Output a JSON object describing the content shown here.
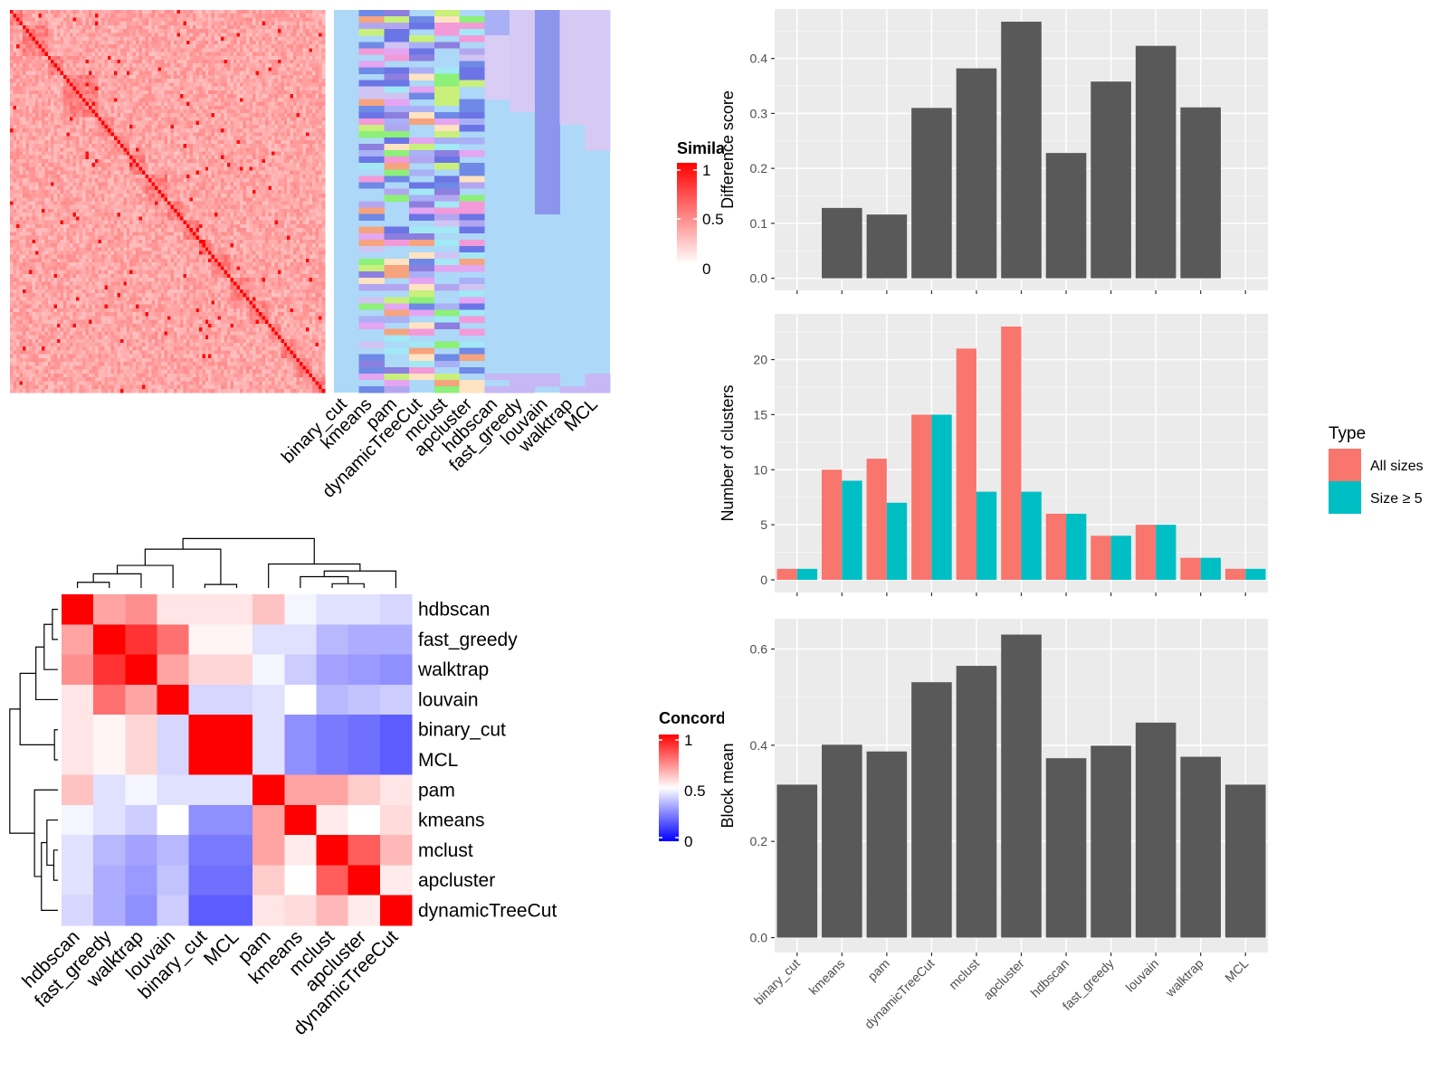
{
  "methods": [
    "binary_cut",
    "kmeans",
    "pam",
    "dynamicTreeCut",
    "mclust",
    "apcluster",
    "hdbscan",
    "fast_greedy",
    "louvain",
    "walktrap",
    "MCL"
  ],
  "similarity_legend": {
    "title": "Similarity",
    "ticks": [
      "1",
      "0.5",
      "0"
    ]
  },
  "concordance_legend": {
    "title": "Concordance",
    "ticks": [
      "1",
      "0.5",
      "0"
    ]
  },
  "colors": {
    "panel_bg": "#EBEBEB",
    "grid": "#FFFFFF",
    "bar": "#595959",
    "all_sizes": "#F8766D",
    "size_ge5": "#00BFC4",
    "sim_high": "#FF0000",
    "conc_low": "#0000FF"
  },
  "chart_data": [
    {
      "type": "heatmap",
      "name": "similarity-heatmap",
      "legend_title": "Similarity",
      "range": [
        0,
        1
      ]
    },
    {
      "type": "heatmap",
      "name": "cluster-assignment-heatmap",
      "columns": [
        "binary_cut",
        "kmeans",
        "pam",
        "dynamicTreeCut",
        "mclust",
        "apcluster",
        "hdbscan",
        "fast_greedy",
        "louvain",
        "walktrap",
        "MCL"
      ]
    },
    {
      "type": "heatmap",
      "name": "concordance-heatmap",
      "legend_title": "Concordance",
      "range": [
        0,
        1
      ],
      "order": [
        "hdbscan",
        "fast_greedy",
        "walktrap",
        "louvain",
        "binary_cut",
        "MCL",
        "pam",
        "kmeans",
        "mclust",
        "apcluster",
        "dynamicTreeCut"
      ],
      "matrix": [
        [
          1.0,
          0.68,
          0.72,
          0.55,
          0.55,
          0.55,
          0.62,
          0.48,
          0.44,
          0.44,
          0.42
        ],
        [
          0.68,
          1.0,
          0.9,
          0.78,
          0.52,
          0.52,
          0.44,
          0.44,
          0.36,
          0.34,
          0.34
        ],
        [
          0.72,
          0.9,
          1.0,
          0.68,
          0.58,
          0.58,
          0.48,
          0.4,
          0.32,
          0.3,
          0.28
        ],
        [
          0.55,
          0.78,
          0.68,
          1.0,
          0.42,
          0.42,
          0.44,
          0.5,
          0.36,
          0.38,
          0.4
        ],
        [
          0.55,
          0.52,
          0.58,
          0.42,
          1.0,
          1.0,
          0.44,
          0.28,
          0.24,
          0.22,
          0.18
        ],
        [
          0.55,
          0.52,
          0.58,
          0.42,
          1.0,
          1.0,
          0.44,
          0.28,
          0.24,
          0.22,
          0.18
        ],
        [
          0.62,
          0.44,
          0.48,
          0.44,
          0.44,
          0.44,
          1.0,
          0.68,
          0.68,
          0.6,
          0.55
        ],
        [
          0.48,
          0.44,
          0.4,
          0.5,
          0.28,
          0.28,
          0.68,
          1.0,
          0.54,
          0.5,
          0.57
        ],
        [
          0.44,
          0.36,
          0.32,
          0.36,
          0.24,
          0.24,
          0.68,
          0.54,
          1.0,
          0.82,
          0.64
        ],
        [
          0.44,
          0.34,
          0.3,
          0.38,
          0.22,
          0.22,
          0.6,
          0.5,
          0.82,
          1.0,
          0.54
        ],
        [
          0.42,
          0.34,
          0.28,
          0.4,
          0.18,
          0.18,
          0.55,
          0.57,
          0.64,
          0.54,
          1.0
        ]
      ]
    },
    {
      "type": "bar",
      "name": "difference-score",
      "categories": [
        "binary_cut",
        "kmeans",
        "pam",
        "dynamicTreeCut",
        "mclust",
        "apcluster",
        "hdbscan",
        "fast_greedy",
        "louvain",
        "walktrap",
        "MCL"
      ],
      "values": [
        0,
        0.128,
        0.116,
        0.31,
        0.382,
        0.467,
        0.228,
        0.358,
        0.423,
        0.311,
        0
      ],
      "ylabel": "Difference score",
      "ylim": [
        -0.022,
        0.49
      ],
      "yticks": [
        "0.0",
        "0.1",
        "0.2",
        "0.3",
        "0.4"
      ]
    },
    {
      "type": "bar",
      "name": "number-of-clusters",
      "categories": [
        "binary_cut",
        "kmeans",
        "pam",
        "dynamicTreeCut",
        "mclust",
        "apcluster",
        "hdbscan",
        "fast_greedy",
        "louvain",
        "walktrap",
        "MCL"
      ],
      "series": [
        {
          "name": "All sizes",
          "values": [
            1,
            10,
            11,
            15,
            21,
            23,
            6,
            4,
            5,
            2,
            1
          ]
        },
        {
          "name": "Size ≥ 5",
          "values": [
            1,
            9,
            7,
            15,
            8,
            8,
            6,
            4,
            5,
            2,
            1
          ]
        }
      ],
      "ylabel": "Number of clusters",
      "ylim": [
        -1.15,
        24.15
      ],
      "yticks": [
        "0",
        "5",
        "10",
        "15",
        "20"
      ],
      "legend_title": "Type",
      "legend_position": "right"
    },
    {
      "type": "bar",
      "name": "block-mean",
      "categories": [
        "binary_cut",
        "kmeans",
        "pam",
        "dynamicTreeCut",
        "mclust",
        "apcluster",
        "hdbscan",
        "fast_greedy",
        "louvain",
        "walktrap",
        "MCL"
      ],
      "values": [
        0.318,
        0.401,
        0.387,
        0.531,
        0.565,
        0.63,
        0.373,
        0.399,
        0.447,
        0.376,
        0.318
      ],
      "ylabel": "Block mean",
      "ylim": [
        -0.031,
        0.663
      ],
      "yticks": [
        "0.0",
        "0.2",
        "0.4",
        "0.6"
      ]
    }
  ]
}
